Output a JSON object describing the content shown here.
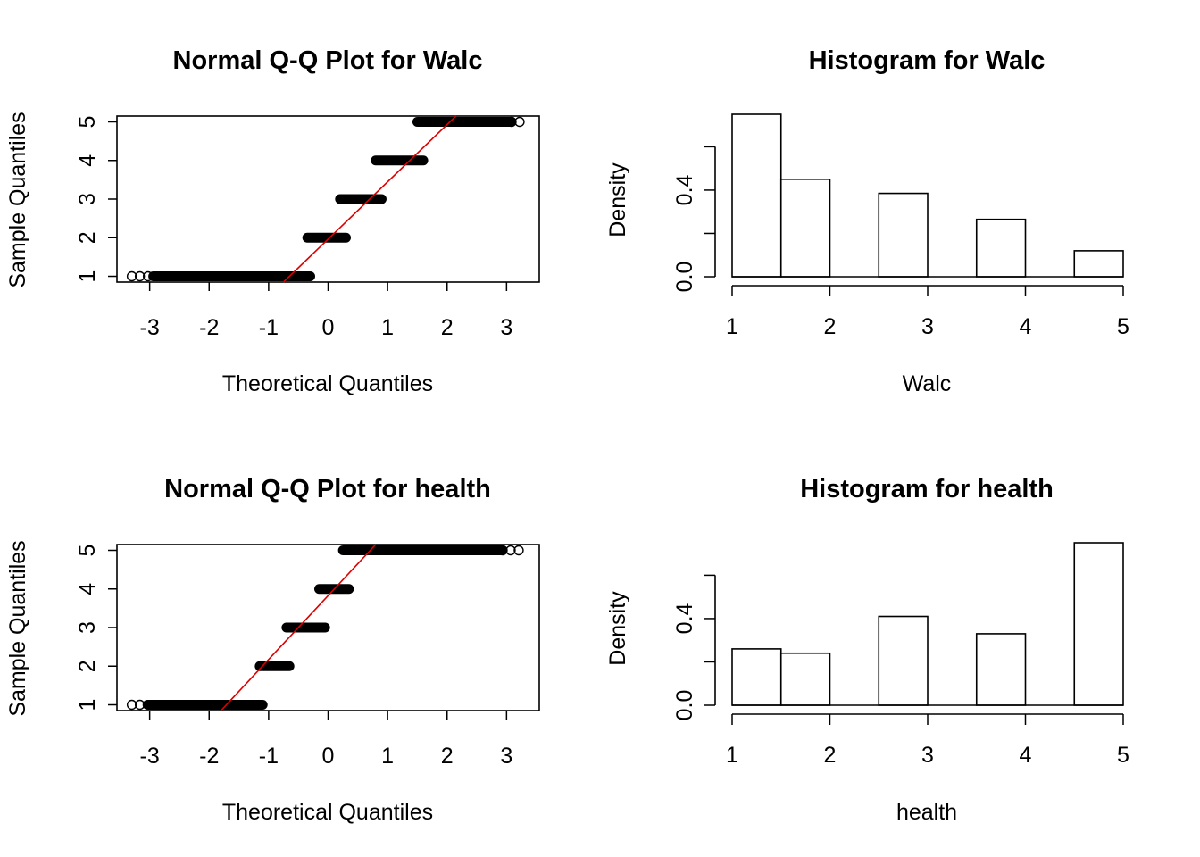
{
  "colors": {
    "ink": "#000000",
    "qq_line": "#dd0000",
    "bar_fill": "#ffffff"
  },
  "chart_data": [
    {
      "type": "scatter",
      "title": "Normal Q-Q Plot for  Walc",
      "xlabel": "Theoretical Quantiles",
      "ylabel": "Sample Quantiles",
      "xlim": [
        -3.55,
        3.55
      ],
      "ylim": [
        0.85,
        5.15
      ],
      "xticks": [
        -3,
        -2,
        -1,
        0,
        1,
        2,
        3
      ],
      "yticks": [
        1,
        2,
        3,
        4,
        5
      ],
      "quantile_bands": [
        {
          "y": 1,
          "x_from": -3.3,
          "x_to": -0.3
        },
        {
          "y": 2,
          "x_from": -0.35,
          "x_to": 0.3
        },
        {
          "y": 3,
          "x_from": 0.2,
          "x_to": 0.9
        },
        {
          "y": 4,
          "x_from": 0.8,
          "x_to": 1.6
        },
        {
          "y": 5,
          "x_from": 1.5,
          "x_to": 3.3
        }
      ],
      "reference_line": {
        "x": [
          -0.75,
          2.15
        ],
        "y": [
          0.85,
          5.15
        ]
      }
    },
    {
      "type": "bar",
      "title": "Histogram for  Walc",
      "xlabel": "Walc",
      "ylabel": "Density",
      "xlim": [
        1,
        5
      ],
      "ylim": [
        0,
        0.75
      ],
      "xticks": [
        1,
        2,
        3,
        4,
        5
      ],
      "yticks": [
        0,
        0.2,
        0.4,
        0.6
      ],
      "ytick_labels": [
        "0.0",
        "",
        "0.4",
        ""
      ],
      "bins": [
        [
          1,
          1.5
        ],
        [
          1.5,
          2
        ],
        [
          2,
          2.5
        ],
        [
          2.5,
          3
        ],
        [
          3,
          3.5
        ],
        [
          3.5,
          4
        ],
        [
          4,
          4.5
        ],
        [
          4.5,
          5
        ]
      ],
      "values": [
        0.75,
        0.45,
        0,
        0.385,
        0,
        0.265,
        0,
        0.12
      ]
    },
    {
      "type": "scatter",
      "title": "Normal Q-Q Plot for  health",
      "xlabel": "Theoretical Quantiles",
      "ylabel": "Sample Quantiles",
      "xlim": [
        -3.55,
        3.55
      ],
      "ylim": [
        0.85,
        5.15
      ],
      "xticks": [
        -3,
        -2,
        -1,
        0,
        1,
        2,
        3
      ],
      "yticks": [
        1,
        2,
        3,
        4,
        5
      ],
      "quantile_bands": [
        {
          "y": 1,
          "x_from": -3.3,
          "x_to": -1.1
        },
        {
          "y": 2,
          "x_from": -1.15,
          "x_to": -0.65
        },
        {
          "y": 3,
          "x_from": -0.7,
          "x_to": -0.05
        },
        {
          "y": 4,
          "x_from": -0.15,
          "x_to": 0.35
        },
        {
          "y": 5,
          "x_from": 0.25,
          "x_to": 3.3
        }
      ],
      "reference_line": {
        "x": [
          -1.8,
          0.8
        ],
        "y": [
          0.85,
          5.15
        ]
      }
    },
    {
      "type": "bar",
      "title": "Histogram for  health",
      "xlabel": "health",
      "ylabel": "Density",
      "xlim": [
        1,
        5
      ],
      "ylim": [
        0,
        0.75
      ],
      "xticks": [
        1,
        2,
        3,
        4,
        5
      ],
      "yticks": [
        0,
        0.2,
        0.4,
        0.6
      ],
      "ytick_labels": [
        "0.0",
        "",
        "0.4",
        ""
      ],
      "bins": [
        [
          1,
          1.5
        ],
        [
          1.5,
          2
        ],
        [
          2,
          2.5
        ],
        [
          2.5,
          3
        ],
        [
          3,
          3.5
        ],
        [
          3.5,
          4
        ],
        [
          4,
          4.5
        ],
        [
          4.5,
          5
        ]
      ],
      "values": [
        0.26,
        0.24,
        0,
        0.41,
        0,
        0.33,
        0,
        0.75
      ]
    }
  ]
}
